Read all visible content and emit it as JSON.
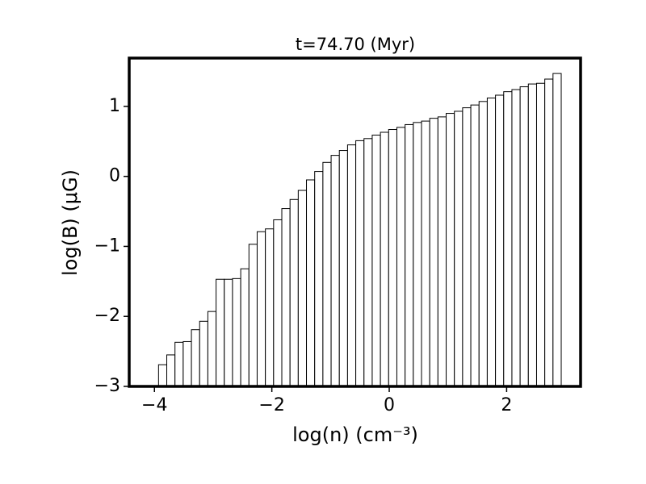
{
  "chart_data": {
    "type": "histogram",
    "title": "t=74.70 (Myr)",
    "x_label": "log(n) (cm⁻³)",
    "y_label": "log(B) (μG)",
    "bins": [
      -3.93,
      -3.79,
      -3.65,
      -3.51,
      -3.37,
      -3.23,
      -3.09,
      -2.95,
      -2.81,
      -2.67,
      -2.53,
      -2.39,
      -2.25,
      -2.11,
      -1.97,
      -1.83,
      -1.69,
      -1.55,
      -1.41,
      -1.27,
      -1.13,
      -0.99,
      -0.85,
      -0.71,
      -0.57,
      -0.43,
      -0.29,
      -0.15,
      -0.01,
      0.13,
      0.27,
      0.41,
      0.55,
      0.69,
      0.83,
      0.97,
      1.11,
      1.25,
      1.39,
      1.53,
      1.67,
      1.81,
      1.95,
      2.09,
      2.23,
      2.37,
      2.51,
      2.65,
      2.79,
      2.93
    ],
    "values": [
      -2.69,
      -2.55,
      -2.37,
      -2.36,
      -2.19,
      -2.07,
      -1.93,
      -1.47,
      -1.47,
      -1.46,
      -1.32,
      -0.97,
      -0.79,
      -0.75,
      -0.62,
      -0.46,
      -0.33,
      -0.2,
      -0.05,
      0.07,
      0.2,
      0.3,
      0.37,
      0.45,
      0.51,
      0.54,
      0.59,
      0.63,
      0.67,
      0.7,
      0.74,
      0.77,
      0.79,
      0.83,
      0.85,
      0.9,
      0.93,
      0.98,
      1.02,
      1.07,
      1.12,
      1.16,
      1.21,
      1.24,
      1.28,
      1.32,
      1.33,
      1.39,
      1.47
    ],
    "color": "#ffffff",
    "edgecolor": "#000000",
    "xlim": [
      -4.43,
      3.26
    ],
    "ylim": [
      -3,
      1.69
    ],
    "xticks": [
      {
        "value": -4,
        "label": "−4"
      },
      {
        "value": -2,
        "label": "−2"
      },
      0,
      2
    ],
    "yticks": [
      {
        "value": -3,
        "label": "−3"
      },
      {
        "value": -2,
        "label": "−2"
      },
      {
        "value": -1,
        "label": "−1"
      },
      0,
      1
    ]
  }
}
